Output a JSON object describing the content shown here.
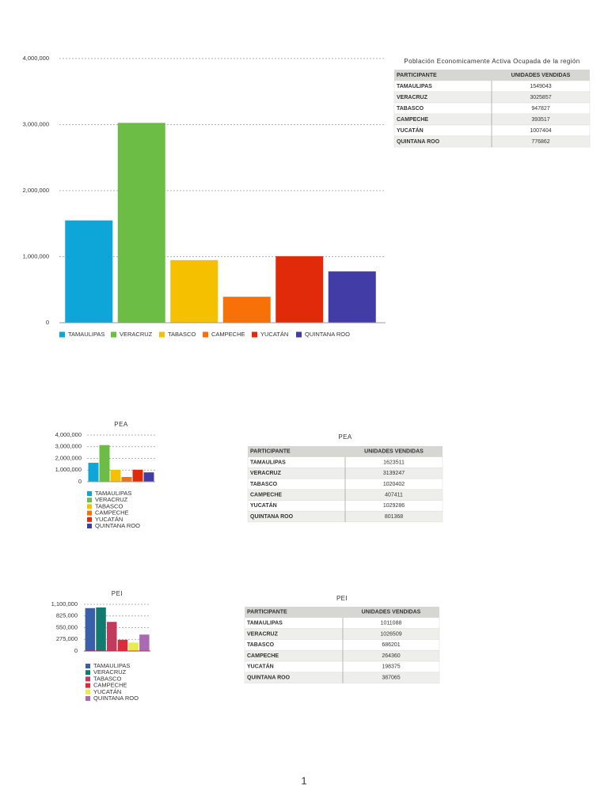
{
  "chart_data": [
    {
      "type": "bar",
      "categories": [
        "TAMAULIPAS",
        "VERACRUZ",
        "TABASCO",
        "CAMPECHE",
        "YUCATÁN",
        "QUINTANA ROO"
      ],
      "values": [
        1549043,
        3025857,
        947827,
        393517,
        1007404,
        776862
      ],
      "colors": [
        "#0ea5d8",
        "#6cbd45",
        "#f5c000",
        "#f77008",
        "#e02a0a",
        "#423ca6"
      ],
      "ylim": [
        0,
        4000000
      ],
      "yticks": [
        0,
        {
          "value": 1000000,
          "label": "1,000,000"
        },
        {
          "value": 2000000,
          "label": "2,000,000"
        },
        {
          "value": 3000000,
          "label": "3,000,000"
        },
        {
          "value": 4000000,
          "label": "4,000,000"
        }
      ],
      "grid": true,
      "legend": "bottom"
    },
    {
      "type": "bar",
      "title": "PEA",
      "categories": [
        "TAMAULIPAS",
        "VERACRUZ",
        "TABASCO",
        "CAMPECHE",
        "YUCATÁN",
        "QUINTANA ROO"
      ],
      "values": [
        1623511,
        3139247,
        1020402,
        407411,
        1029286,
        801368
      ],
      "colors": [
        "#0ea5d8",
        "#6cbd45",
        "#f5c000",
        "#f77008",
        "#e02a0a",
        "#423ca6"
      ],
      "ylim": [
        0,
        4000000
      ],
      "yticks": [
        0,
        {
          "value": 1000000,
          "label": "1,000,000"
        },
        {
          "value": 2000000,
          "label": "2,000,000"
        },
        {
          "value": 3000000,
          "label": "3,000,000"
        },
        {
          "value": 4000000,
          "label": "4,000,000"
        }
      ],
      "grid": true,
      "legend": "bottom"
    },
    {
      "type": "bar",
      "title": "PEI",
      "categories": [
        "TAMAULIPAS",
        "VERACRUZ",
        "TABASCO",
        "CAMPECHE",
        "YUCATÁN",
        "QUINTANA ROO"
      ],
      "values": [
        1011088,
        1026509,
        686201,
        264360,
        198375,
        387065
      ],
      "colors": [
        "#3a5ea8",
        "#127a6e",
        "#c23a5c",
        "#de2a3a",
        "#e8ec4a",
        "#a86ab0"
      ],
      "ylim": [
        0,
        1100000
      ],
      "yticks": [
        0,
        {
          "value": 275000,
          "label": "275,000"
        },
        {
          "value": 550000,
          "label": "550,000"
        },
        {
          "value": 825000,
          "label": "825,000"
        },
        {
          "value": 1100000,
          "label": "1,100,000"
        }
      ],
      "grid": true,
      "legend": "bottom"
    }
  ],
  "tables": [
    {
      "title": "Población Economicamente Activa Ocupada de la región",
      "header": [
        "PARTICIPANTE",
        "UNIDADES VENDIDAS"
      ],
      "rows": [
        [
          "TAMAULIPAS",
          1549043
        ],
        [
          "VERACRUZ",
          3025857
        ],
        [
          "TABASCO",
          947827
        ],
        [
          "CAMPECHE",
          393517
        ],
        [
          "YUCATÁN",
          1007404
        ],
        [
          "QUINTANA ROO",
          776862
        ]
      ]
    },
    {
      "title": "PEA",
      "header": [
        "PARTICIPANTE",
        "UNIDADES VENDIDAS"
      ],
      "rows": [
        [
          "TAMAULIPAS",
          1623511
        ],
        [
          "VERACRUZ",
          3139247
        ],
        [
          "TABASCO",
          1020402
        ],
        [
          "CAMPECHE",
          407411
        ],
        [
          "YUCATÁN",
          1029286
        ],
        [
          "QUINTANA ROO",
          801368
        ]
      ]
    },
    {
      "title": "PEI",
      "header": [
        "PARTICIPANTE",
        "UNIDADES VENDIDAS"
      ],
      "rows": [
        [
          "TAMAULIPAS",
          1011088
        ],
        [
          "VERACRUZ",
          1026509
        ],
        [
          "TABASCO",
          686201
        ],
        [
          "CAMPECHE",
          264360
        ],
        [
          "YUCATÁN",
          198375
        ],
        [
          "QUINTANA ROO",
          387065
        ]
      ]
    }
  ],
  "page_number": "1"
}
